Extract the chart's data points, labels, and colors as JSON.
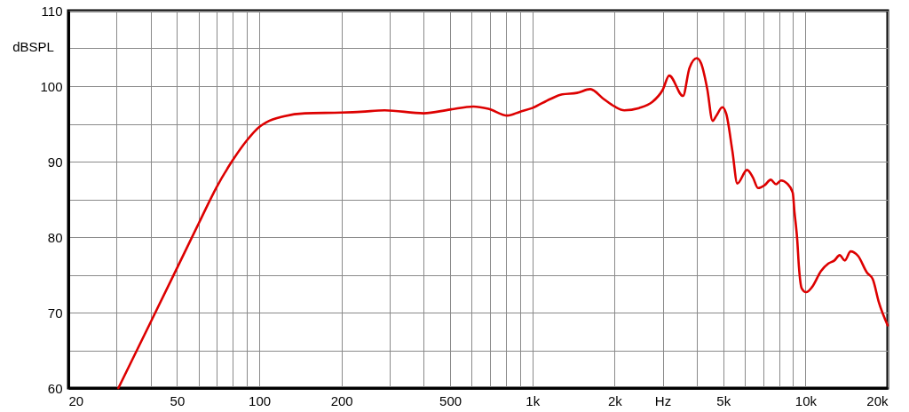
{
  "chart_data": {
    "type": "line",
    "ylabel": "dBSPL",
    "x": [
      30.5,
      40,
      50,
      60,
      70,
      80,
      90,
      100,
      106,
      123,
      147,
      200,
      236,
      288,
      400,
      500,
      608,
      690,
      810,
      900,
      1000,
      1164,
      1286,
      1456,
      1630,
      1824,
      2000,
      2170,
      2460,
      2750,
      3000,
      3170,
      3560,
      3760,
      4000,
      4150,
      4370,
      4570,
      4720,
      4960,
      5130,
      5400,
      5630,
      6110,
      6420,
      6700,
      7100,
      7460,
      7800,
      8140,
      8560,
      8980,
      9110,
      9330,
      9460,
      9690,
      10060,
      10580,
      11400,
      12130,
      12760,
      13340,
      13930,
      14630,
      15580,
      16790,
      17640,
      18550,
      20000
    ],
    "series": [
      {
        "color": "#dd0000",
        "values": [
          60,
          68.7,
          75.9,
          81.8,
          86.7,
          90.2,
          92.8,
          94.6,
          95.2,
          96.0,
          96.4,
          96.5,
          96.6,
          96.8,
          96.4,
          96.9,
          97.3,
          97.0,
          96.1,
          96.6,
          97.1,
          98.3,
          98.9,
          99.1,
          99.6,
          98.3,
          97.3,
          96.8,
          97.1,
          97.9,
          99.5,
          101.4,
          98.7,
          102.4,
          103.7,
          103.0,
          99.6,
          95.4,
          96.1,
          97.2,
          96.3,
          91.4,
          87.1,
          88.9,
          87.9,
          86.5,
          86.9,
          87.6,
          87.0,
          87.5,
          87.1,
          85.9,
          83.4,
          79.6,
          76.1,
          73.2,
          72.7,
          73.4,
          75.5,
          76.5,
          76.9,
          77.6,
          76.9,
          78.1,
          77.5,
          75.3,
          74.4,
          71.4,
          68.3
        ]
      }
    ],
    "xlim": [
      20,
      20000
    ],
    "ylim": [
      60,
      110
    ],
    "xticks": [
      20,
      {
        "value": 30,
        "label": null
      },
      {
        "value": 40,
        "label": null
      },
      50,
      {
        "value": 60,
        "label": null
      },
      {
        "value": 70,
        "label": null
      },
      {
        "value": 80,
        "label": null
      },
      {
        "value": 90,
        "label": null
      },
      100,
      200,
      {
        "value": 300,
        "label": null
      },
      {
        "value": 400,
        "label": null
      },
      500,
      {
        "value": 600,
        "label": null
      },
      {
        "value": 700,
        "label": null
      },
      {
        "value": 800,
        "label": null
      },
      {
        "value": 900,
        "label": null
      },
      {
        "value": 1000,
        "label": "1k"
      },
      {
        "value": 2000,
        "label": "2k"
      },
      {
        "value": 3000,
        "label": "Hz"
      },
      {
        "value": 4000,
        "label": null
      },
      {
        "value": 5000,
        "label": "5k"
      },
      {
        "value": 6000,
        "label": null
      },
      {
        "value": 7000,
        "label": null
      },
      {
        "value": 8000,
        "label": null
      },
      {
        "value": 9000,
        "label": null
      },
      {
        "value": 10000,
        "label": "10k"
      },
      {
        "value": 20000,
        "label": "20k"
      }
    ],
    "yticks": [
      60,
      {
        "value": 65,
        "label": null
      },
      70,
      {
        "value": 75,
        "label": null
      },
      80,
      {
        "value": 85,
        "label": null
      },
      90,
      {
        "value": 95,
        "label": null
      },
      100,
      {
        "value": 105,
        "label": null
      },
      110
    ],
    "log": "x",
    "grid": true,
    "line_style": "solid"
  }
}
